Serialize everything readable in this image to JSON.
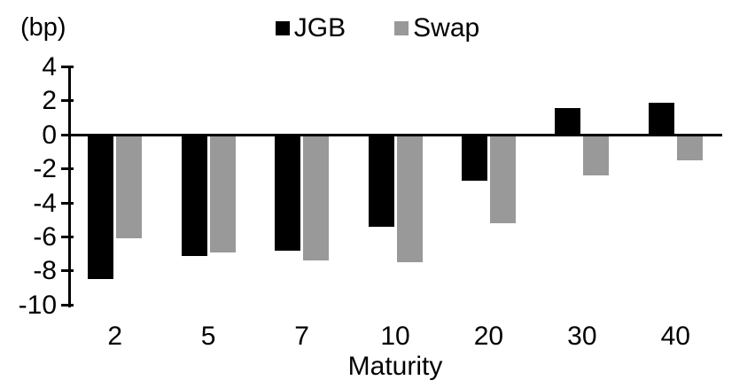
{
  "chart_data": {
    "type": "bar",
    "title": "",
    "unit_label": "(bp)",
    "xlabel": "Maturity",
    "ylabel": "",
    "categories": [
      "2",
      "5",
      "7",
      "10",
      "20",
      "30",
      "40"
    ],
    "series": [
      {
        "name": "JGB",
        "color": "#000000",
        "values": [
          -8.5,
          -7.1,
          -6.8,
          -5.4,
          -2.7,
          1.6,
          1.9
        ]
      },
      {
        "name": "Swap",
        "color": "#999999",
        "values": [
          -6.1,
          -6.9,
          -7.4,
          -7.5,
          -5.2,
          -2.4,
          -1.5
        ]
      }
    ],
    "ylim": [
      -10,
      4
    ],
    "ytick_step": 2,
    "ytick_labels": [
      "4",
      "2",
      "0",
      "-2",
      "-4",
      "-6",
      "-8",
      "-10"
    ],
    "grid": false,
    "legend_position": "top-center",
    "baseline": 0
  }
}
